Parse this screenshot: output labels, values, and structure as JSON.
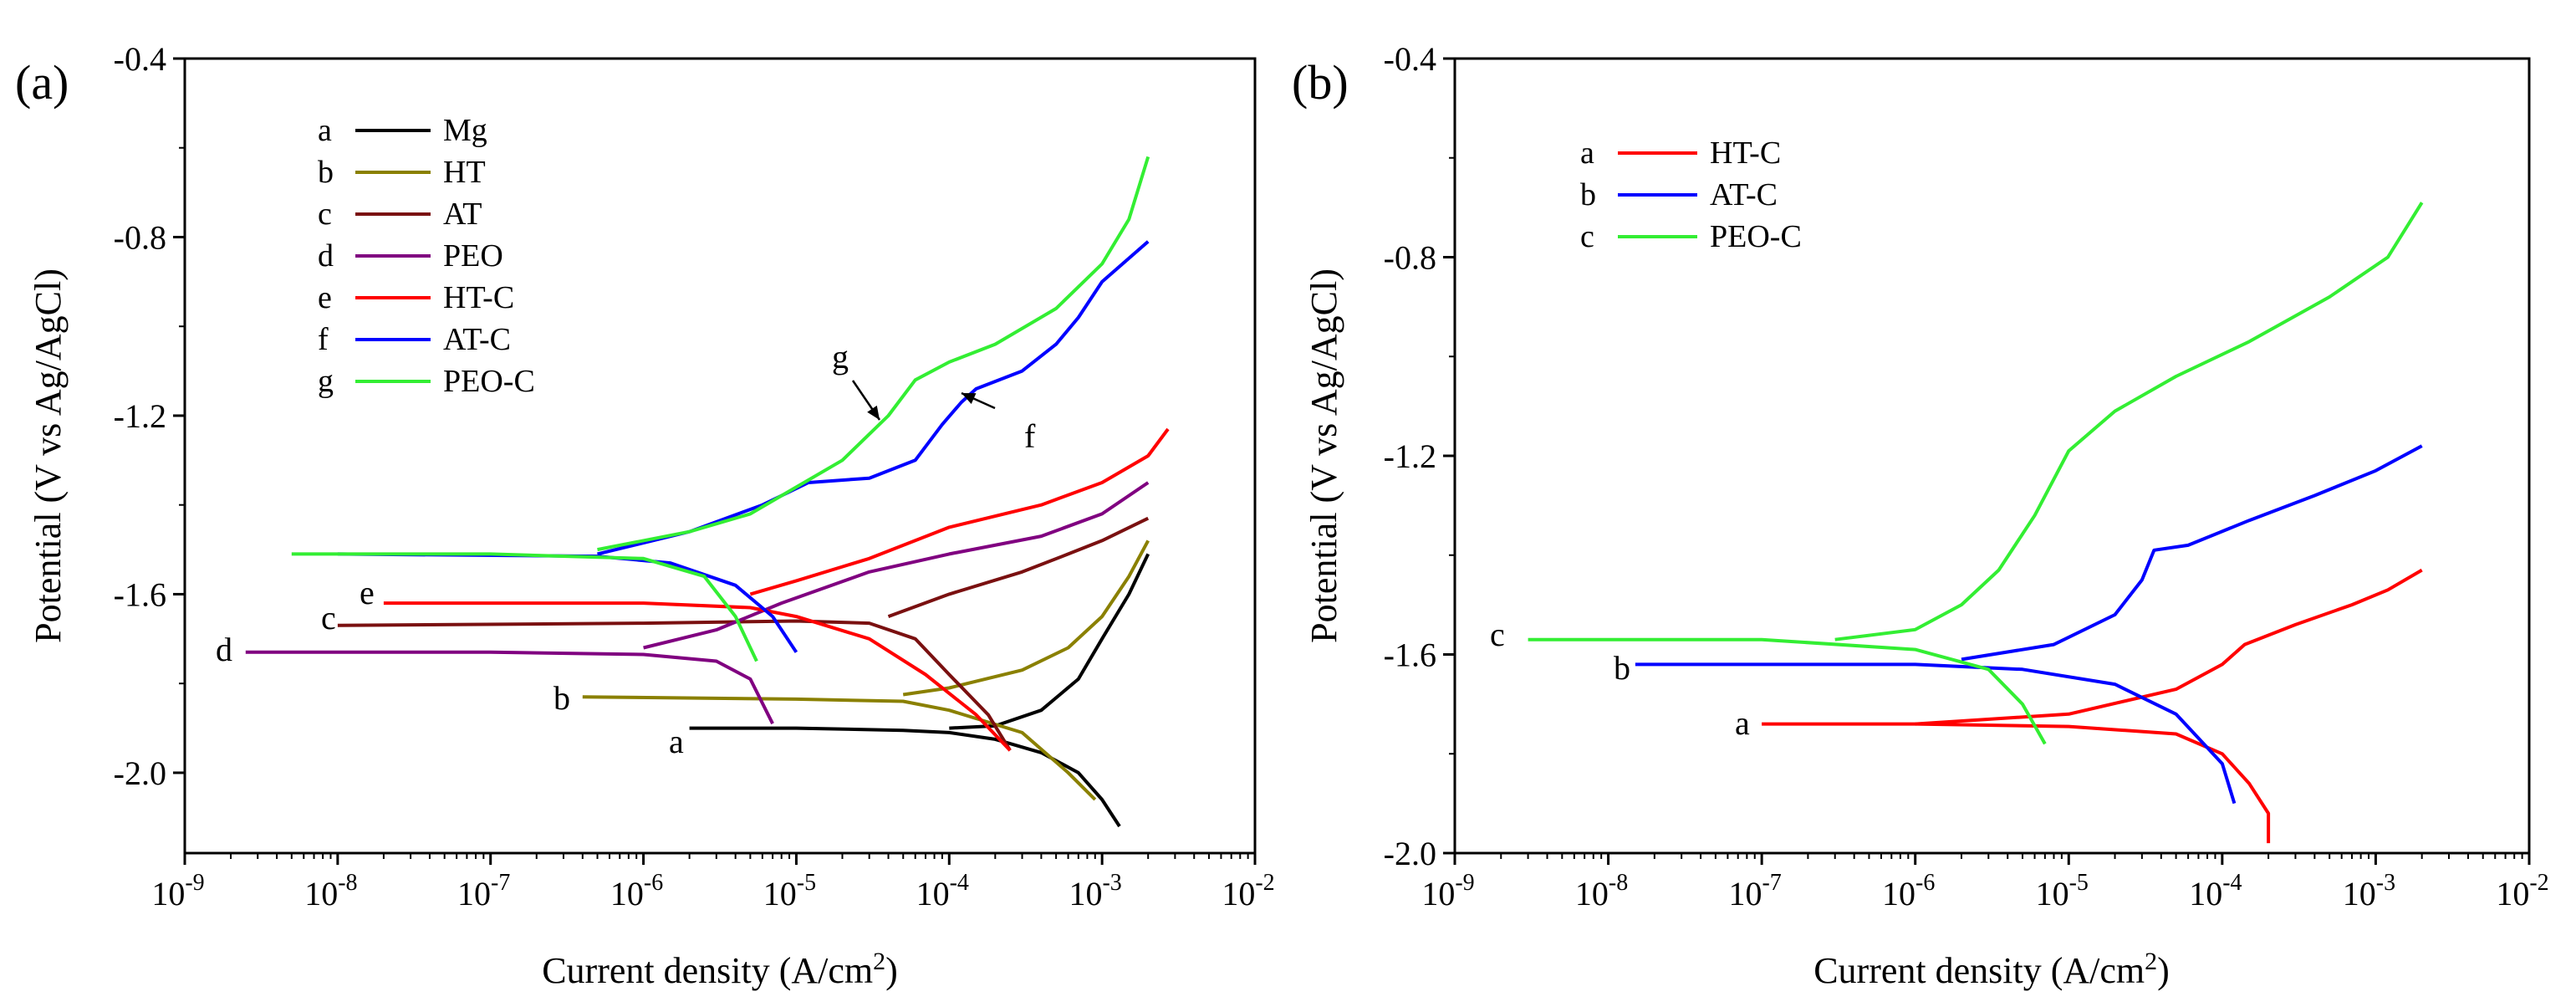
{
  "chart_data": [
    {
      "panel_label": "(a)",
      "type": "line",
      "x_scale": "log",
      "xlabel": "Current density (A/cm",
      "xlabel_sup": "2",
      "xlabel_end": ")",
      "ylabel": "Potential (V vs Ag/AgCl)",
      "xlim": [
        1e-09,
        0.01
      ],
      "ylim": [
        -2.18,
        -0.4
      ],
      "x_ticks": [
        {
          "base": "10",
          "exp": "-9"
        },
        {
          "base": "10",
          "exp": "-8"
        },
        {
          "base": "10",
          "exp": "-7"
        },
        {
          "base": "10",
          "exp": "-6"
        },
        {
          "base": "10",
          "exp": "-5"
        },
        {
          "base": "10",
          "exp": "-4"
        },
        {
          "base": "10",
          "exp": "-3"
        },
        {
          "base": "10",
          "exp": "-2"
        }
      ],
      "y_ticks": [
        -0.4,
        -0.8,
        -1.2,
        -1.6,
        -2.0
      ],
      "y_tick_labels": [
        "-0.4",
        "-0.8",
        "-1.2",
        "-1.6",
        "-2.0"
      ],
      "grid": false,
      "legend_position": "top-left",
      "series": [
        {
          "key": "a",
          "name": "Mg",
          "color": "#000000",
          "ecorr": -1.9,
          "points": [
            [
              2e-06,
              -1.9
            ],
            [
              1e-05,
              -1.9
            ],
            [
              5e-05,
              -1.905
            ],
            [
              0.0001,
              -1.91
            ],
            [
              0.0002,
              -1.925
            ],
            [
              0.0004,
              -1.955
            ],
            [
              0.0007,
              -2.0
            ],
            [
              0.001,
              -2.06
            ],
            [
              0.0013,
              -2.12
            ]
          ],
          "anodic": [
            [
              0.0001,
              -1.9
            ],
            [
              0.0002,
              -1.895
            ],
            [
              0.0004,
              -1.86
            ],
            [
              0.0007,
              -1.79
            ],
            [
              0.001,
              -1.7
            ],
            [
              0.0015,
              -1.6
            ],
            [
              0.002,
              -1.51
            ]
          ]
        },
        {
          "key": "b",
          "name": "HT",
          "color": "#8a8000",
          "ecorr": -1.83,
          "points": [
            [
              4e-07,
              -1.83
            ],
            [
              1e-05,
              -1.835
            ],
            [
              5e-05,
              -1.84
            ],
            [
              0.0001,
              -1.86
            ],
            [
              0.0003,
              -1.91
            ],
            [
              0.0006,
              -2.0
            ],
            [
              0.0009,
              -2.06
            ]
          ],
          "anodic": [
            [
              5e-05,
              -1.825
            ],
            [
              0.0001,
              -1.81
            ],
            [
              0.0003,
              -1.77
            ],
            [
              0.0006,
              -1.72
            ],
            [
              0.001,
              -1.65
            ],
            [
              0.0015,
              -1.56
            ],
            [
              0.002,
              -1.48
            ]
          ]
        },
        {
          "key": "c",
          "name": "AT",
          "color": "#7a1010",
          "ecorr": -1.67,
          "points": [
            [
              1e-08,
              -1.67
            ],
            [
              1e-06,
              -1.665
            ],
            [
              1e-05,
              -1.66
            ],
            [
              3e-05,
              -1.665
            ],
            [
              6e-05,
              -1.7
            ],
            [
              0.0001,
              -1.78
            ],
            [
              0.00018,
              -1.87
            ],
            [
              0.00025,
              -1.95
            ]
          ],
          "anodic": [
            [
              4e-05,
              -1.65
            ],
            [
              0.0001,
              -1.6
            ],
            [
              0.0003,
              -1.55
            ],
            [
              0.0006,
              -1.51
            ],
            [
              0.001,
              -1.48
            ],
            [
              0.002,
              -1.43
            ]
          ]
        },
        {
          "key": "d",
          "name": "PEO",
          "color": "#800080",
          "ecorr": -1.73,
          "points": [
            [
              2.5e-09,
              -1.73
            ],
            [
              1e-07,
              -1.73
            ],
            [
              1e-06,
              -1.735
            ],
            [
              3e-06,
              -1.75
            ],
            [
              5e-06,
              -1.79
            ],
            [
              7e-06,
              -1.89
            ]
          ],
          "anodic": [
            [
              1e-06,
              -1.72
            ],
            [
              3e-06,
              -1.68
            ],
            [
              8e-06,
              -1.62
            ],
            [
              3e-05,
              -1.55
            ],
            [
              0.0001,
              -1.51
            ],
            [
              0.0004,
              -1.47
            ],
            [
              0.001,
              -1.42
            ],
            [
              0.002,
              -1.35
            ]
          ]
        },
        {
          "key": "e",
          "name": "HT-C",
          "color": "#ff0000",
          "ecorr": -1.62,
          "points": [
            [
              2e-08,
              -1.62
            ],
            [
              1e-06,
              -1.62
            ],
            [
              5e-06,
              -1.63
            ],
            [
              1e-05,
              -1.65
            ],
            [
              3e-05,
              -1.7
            ],
            [
              7e-05,
              -1.78
            ],
            [
              0.00015,
              -1.87
            ],
            [
              0.00025,
              -1.95
            ]
          ],
          "anodic": [
            [
              5e-06,
              -1.6
            ],
            [
              1e-05,
              -1.57
            ],
            [
              3e-05,
              -1.52
            ],
            [
              0.0001,
              -1.45
            ],
            [
              0.0004,
              -1.4
            ],
            [
              0.001,
              -1.35
            ],
            [
              0.002,
              -1.29
            ],
            [
              0.0027,
              -1.23
            ]
          ]
        },
        {
          "key": "f",
          "name": "AT-C",
          "color": "#0000ff",
          "ecorr": -1.51,
          "points": [
            [
              1e-08,
              -1.51
            ],
            [
              5e-07,
              -1.515
            ],
            [
              1.5e-06,
              -1.53
            ],
            [
              4e-06,
              -1.58
            ],
            [
              7e-06,
              -1.65
            ],
            [
              1e-05,
              -1.73
            ]
          ],
          "anodic": [
            [
              5e-07,
              -1.51
            ],
            [
              2e-06,
              -1.46
            ],
            [
              6e-06,
              -1.4
            ],
            [
              1.2e-05,
              -1.35
            ],
            [
              3e-05,
              -1.34
            ],
            [
              6e-05,
              -1.3
            ],
            [
              9e-05,
              -1.22
            ],
            [
              0.00012,
              -1.17
            ],
            [
              0.00015,
              -1.14
            ],
            [
              0.0003,
              -1.1
            ],
            [
              0.0005,
              -1.04
            ],
            [
              0.0007,
              -0.98
            ],
            [
              0.001,
              -0.9
            ],
            [
              0.002,
              -0.81
            ]
          ]
        },
        {
          "key": "g",
          "name": "PEO-C",
          "color": "#33ee33",
          "ecorr": -1.51,
          "points": [
            [
              5e-09,
              -1.51
            ],
            [
              1e-07,
              -1.51
            ],
            [
              1e-06,
              -1.52
            ],
            [
              2.5e-06,
              -1.56
            ],
            [
              4e-06,
              -1.65
            ],
            [
              5.5e-06,
              -1.75
            ]
          ],
          "anodic": [
            [
              5e-07,
              -1.5
            ],
            [
              2e-06,
              -1.46
            ],
            [
              5e-06,
              -1.42
            ],
            [
              1e-05,
              -1.36
            ],
            [
              2e-05,
              -1.3
            ],
            [
              4e-05,
              -1.2
            ],
            [
              6e-05,
              -1.12
            ],
            [
              0.0001,
              -1.08
            ],
            [
              0.0002,
              -1.04
            ],
            [
              0.0005,
              -0.96
            ],
            [
              0.001,
              -0.86
            ],
            [
              0.0015,
              -0.76
            ],
            [
              0.002,
              -0.62
            ]
          ]
        }
      ],
      "annotations": [
        {
          "text": "a",
          "series": "a"
        },
        {
          "text": "b",
          "series": "b"
        },
        {
          "text": "c",
          "series": "c"
        },
        {
          "text": "d",
          "series": "d"
        },
        {
          "text": "e",
          "series": "e"
        },
        {
          "text": "f",
          "series": "f",
          "arrow": true
        },
        {
          "text": "g",
          "series": "g",
          "arrow": true
        }
      ]
    },
    {
      "panel_label": "(b)",
      "type": "line",
      "x_scale": "log",
      "xlabel": "Current density (A/cm",
      "xlabel_sup": "2",
      "xlabel_end": ")",
      "ylabel": "Potential (V vs Ag/AgCl)",
      "xlim": [
        1e-09,
        0.01
      ],
      "ylim": [
        -2.0,
        -0.4
      ],
      "x_ticks": [
        {
          "base": "10",
          "exp": "-9"
        },
        {
          "base": "10",
          "exp": "-8"
        },
        {
          "base": "10",
          "exp": "-7"
        },
        {
          "base": "10",
          "exp": "-6"
        },
        {
          "base": "10",
          "exp": "-5"
        },
        {
          "base": "10",
          "exp": "-4"
        },
        {
          "base": "10",
          "exp": "-3"
        },
        {
          "base": "10",
          "exp": "-2"
        }
      ],
      "y_ticks": [
        -0.4,
        -0.8,
        -1.2,
        -1.6,
        -2.0
      ],
      "y_tick_labels": [
        "-0.4",
        "-0.8",
        "-1.2",
        "-1.6",
        "-2.0"
      ],
      "grid": false,
      "legend_position": "top-left",
      "series": [
        {
          "key": "a",
          "name": "HT-C",
          "color": "#ff0000",
          "ecorr": -1.74,
          "points": [
            [
              1e-07,
              -1.74
            ],
            [
              1e-06,
              -1.74
            ],
            [
              1e-05,
              -1.745
            ],
            [
              5e-05,
              -1.76
            ],
            [
              0.0001,
              -1.8
            ],
            [
              0.00015,
              -1.86
            ],
            [
              0.0002,
              -1.92
            ],
            [
              0.0002,
              -1.98
            ]
          ],
          "anodic": [
            [
              1e-06,
              -1.74
            ],
            [
              1e-05,
              -1.72
            ],
            [
              5e-05,
              -1.67
            ],
            [
              0.0001,
              -1.62
            ],
            [
              0.00014,
              -1.58
            ],
            [
              0.0003,
              -1.54
            ],
            [
              0.0007,
              -1.5
            ],
            [
              0.0012,
              -1.47
            ],
            [
              0.002,
              -1.43
            ]
          ]
        },
        {
          "key": "b",
          "name": "AT-C",
          "color": "#0000ff",
          "ecorr": -1.62,
          "points": [
            [
              1.5e-08,
              -1.62
            ],
            [
              1e-06,
              -1.62
            ],
            [
              5e-06,
              -1.63
            ],
            [
              2e-05,
              -1.66
            ],
            [
              5e-05,
              -1.72
            ],
            [
              0.0001,
              -1.82
            ],
            [
              0.00012,
              -1.9
            ]
          ],
          "anodic": [
            [
              2e-06,
              -1.61
            ],
            [
              8e-06,
              -1.58
            ],
            [
              2e-05,
              -1.52
            ],
            [
              3e-05,
              -1.45
            ],
            [
              3.6e-05,
              -1.39
            ],
            [
              6e-05,
              -1.38
            ],
            [
              0.00015,
              -1.33
            ],
            [
              0.0004,
              -1.28
            ],
            [
              0.001,
              -1.23
            ],
            [
              0.002,
              -1.18
            ]
          ]
        },
        {
          "key": "c",
          "name": "PEO-C",
          "color": "#33ee33",
          "ecorr": -1.57,
          "points": [
            [
              3e-09,
              -1.57
            ],
            [
              1e-07,
              -1.57
            ],
            [
              1e-06,
              -1.59
            ],
            [
              3e-06,
              -1.63
            ],
            [
              5e-06,
              -1.7
            ],
            [
              7e-06,
              -1.78
            ]
          ],
          "anodic": [
            [
              3e-07,
              -1.57
            ],
            [
              1e-06,
              -1.55
            ],
            [
              2e-06,
              -1.5
            ],
            [
              3.5e-06,
              -1.43
            ],
            [
              6e-06,
              -1.32
            ],
            [
              1e-05,
              -1.19
            ],
            [
              2e-05,
              -1.11
            ],
            [
              5e-05,
              -1.04
            ],
            [
              0.00015,
              -0.97
            ],
            [
              0.0005,
              -0.88
            ],
            [
              0.0012,
              -0.8
            ],
            [
              0.002,
              -0.69
            ]
          ]
        }
      ],
      "annotations": [
        {
          "text": "a",
          "series": "a"
        },
        {
          "text": "b",
          "series": "b"
        },
        {
          "text": "c",
          "series": "c"
        }
      ]
    }
  ]
}
